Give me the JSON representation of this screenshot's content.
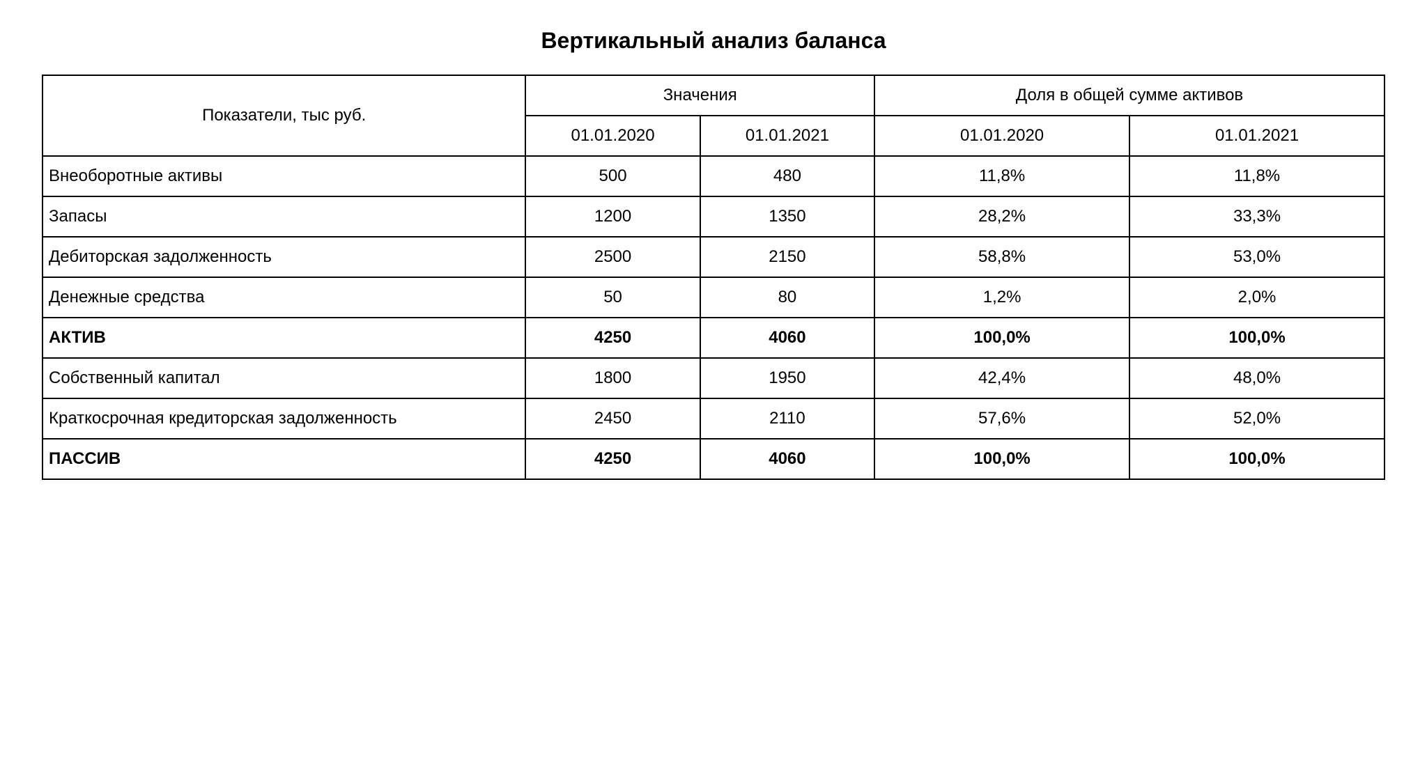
{
  "title": "Вертикальный анализ баланса",
  "table": {
    "type": "table",
    "background_color": "#ffffff",
    "border_color": "#000000",
    "border_width": 2,
    "font_family": "Arial",
    "header_fontsize": 24,
    "body_fontsize": 24,
    "columns": {
      "indicators_label": "Показатели, тыс руб.",
      "values_label": "Значения",
      "share_label": "Доля в общей сумме активов",
      "date1": "01.01.2020",
      "date2": "01.01.2021"
    },
    "column_widths": {
      "label": "36%",
      "value": "13%",
      "share": "19%"
    },
    "rows": [
      {
        "label": "Внеоборотные активы",
        "val_2020": "500",
        "val_2021": "480",
        "share_2020": "11,8%",
        "share_2021": "11,8%",
        "bold": false
      },
      {
        "label": "Запасы",
        "val_2020": "1200",
        "val_2021": "1350",
        "share_2020": "28,2%",
        "share_2021": "33,3%",
        "bold": false
      },
      {
        "label": "Дебиторская задолженность",
        "val_2020": "2500",
        "val_2021": "2150",
        "share_2020": "58,8%",
        "share_2021": "53,0%",
        "bold": false
      },
      {
        "label": "Денежные средства",
        "val_2020": "50",
        "val_2021": "80",
        "share_2020": "1,2%",
        "share_2021": "2,0%",
        "bold": false
      },
      {
        "label": "АКТИВ",
        "val_2020": "4250",
        "val_2021": "4060",
        "share_2020": "100,0%",
        "share_2021": "100,0%",
        "bold": true
      },
      {
        "label": "Собственный капитал",
        "val_2020": "1800",
        "val_2021": "1950",
        "share_2020": "42,4%",
        "share_2021": "48,0%",
        "bold": false
      },
      {
        "label": "Краткосрочная кредиторская задолженность",
        "val_2020": "2450",
        "val_2021": "2110",
        "share_2020": "57,6%",
        "share_2021": "52,0%",
        "bold": false
      },
      {
        "label": "ПАССИВ",
        "val_2020": "4250",
        "val_2021": "4060",
        "share_2020": "100,0%",
        "share_2021": "100,0%",
        "bold": true
      }
    ]
  }
}
